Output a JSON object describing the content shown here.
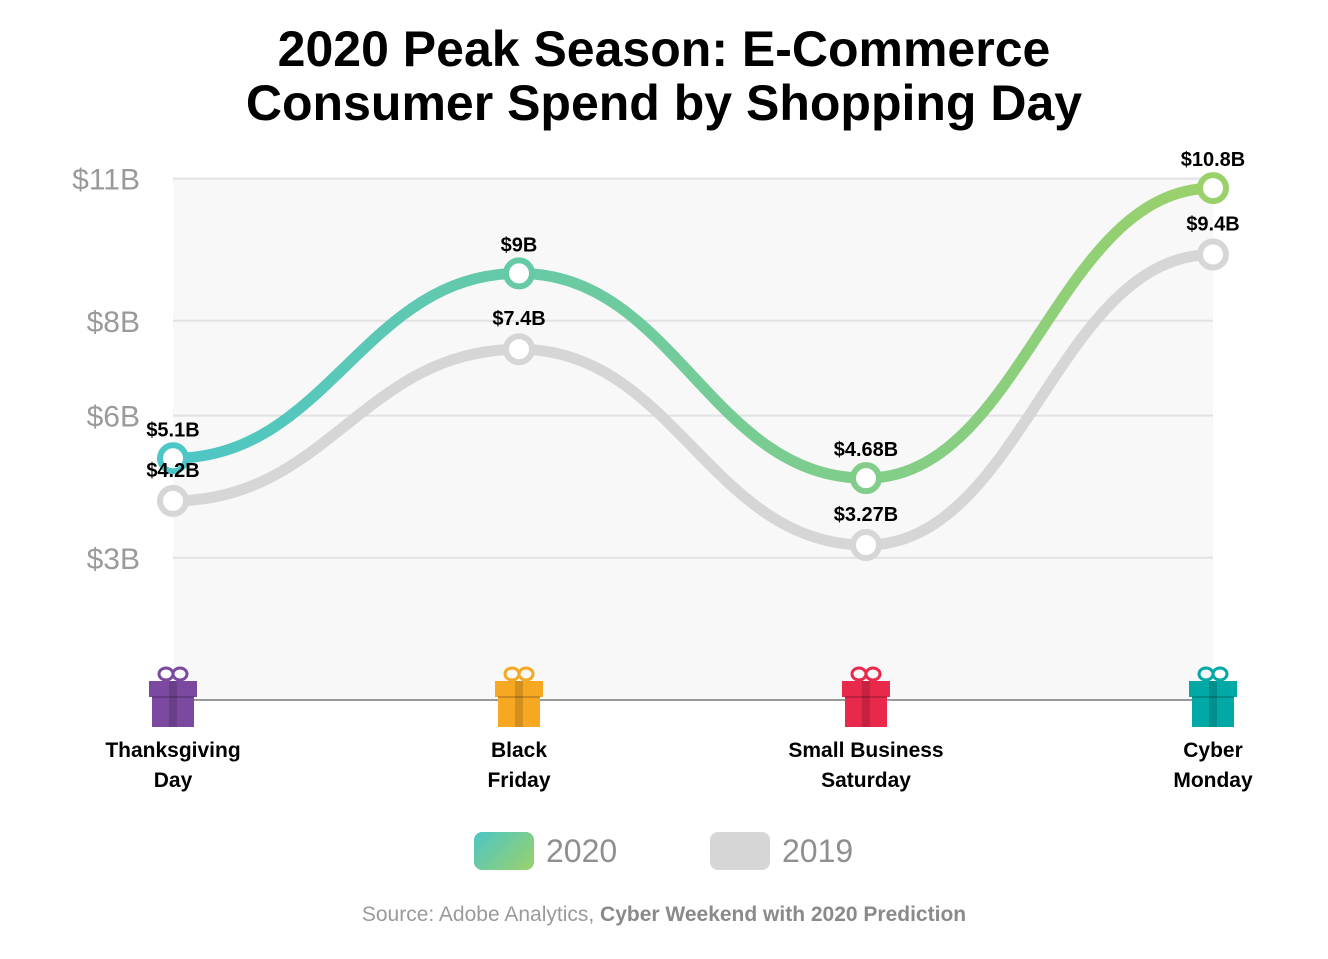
{
  "title_line1": "2020 Peak Season: E-Commerce",
  "title_line2": "Consumer Spend by Shopping Day",
  "source_prefix": "Source: Adobe Analytics, ",
  "source_bold": "Cyber Weekend with 2020 Prediction",
  "colors": {
    "line_2020_start": "#4cc6c6",
    "line_2020_end": "#9bd16a",
    "line_2019": "#d6d6d6",
    "gift_thanksgiving": "#7b4aa0",
    "gift_black_friday": "#f7a823",
    "gift_small_business": "#e8294c",
    "gift_cyber_monday": "#00a9a5"
  },
  "chart_data": {
    "type": "line",
    "title": "2020 Peak Season: E-Commerce Consumer Spend by Shopping Day",
    "categories": [
      "Thanksgiving Day",
      "Black Friday",
      "Small Business Saturday",
      "Cyber Monday"
    ],
    "category_lines": [
      [
        "Thanksgiving",
        "Day"
      ],
      [
        "Black",
        "Friday"
      ],
      [
        "Small Business",
        "Saturday"
      ],
      [
        "Cyber",
        "Monday"
      ]
    ],
    "yticks": [
      "$11B",
      "$8B",
      "$6B",
      "$3B"
    ],
    "ylim": [
      0,
      11
    ],
    "grid": true,
    "legend_placement": "bottom",
    "series": [
      {
        "name": "2020",
        "values": [
          5.1,
          9.0,
          4.68,
          10.8
        ],
        "labels": [
          "$5.1B",
          "$9B",
          "$4.68B",
          "$10.8B"
        ]
      },
      {
        "name": "2019",
        "values": [
          4.2,
          7.4,
          3.27,
          9.4
        ],
        "labels": [
          "$4.2B",
          "$7.4B",
          "$3.27B",
          "$9.4B"
        ]
      }
    ]
  }
}
